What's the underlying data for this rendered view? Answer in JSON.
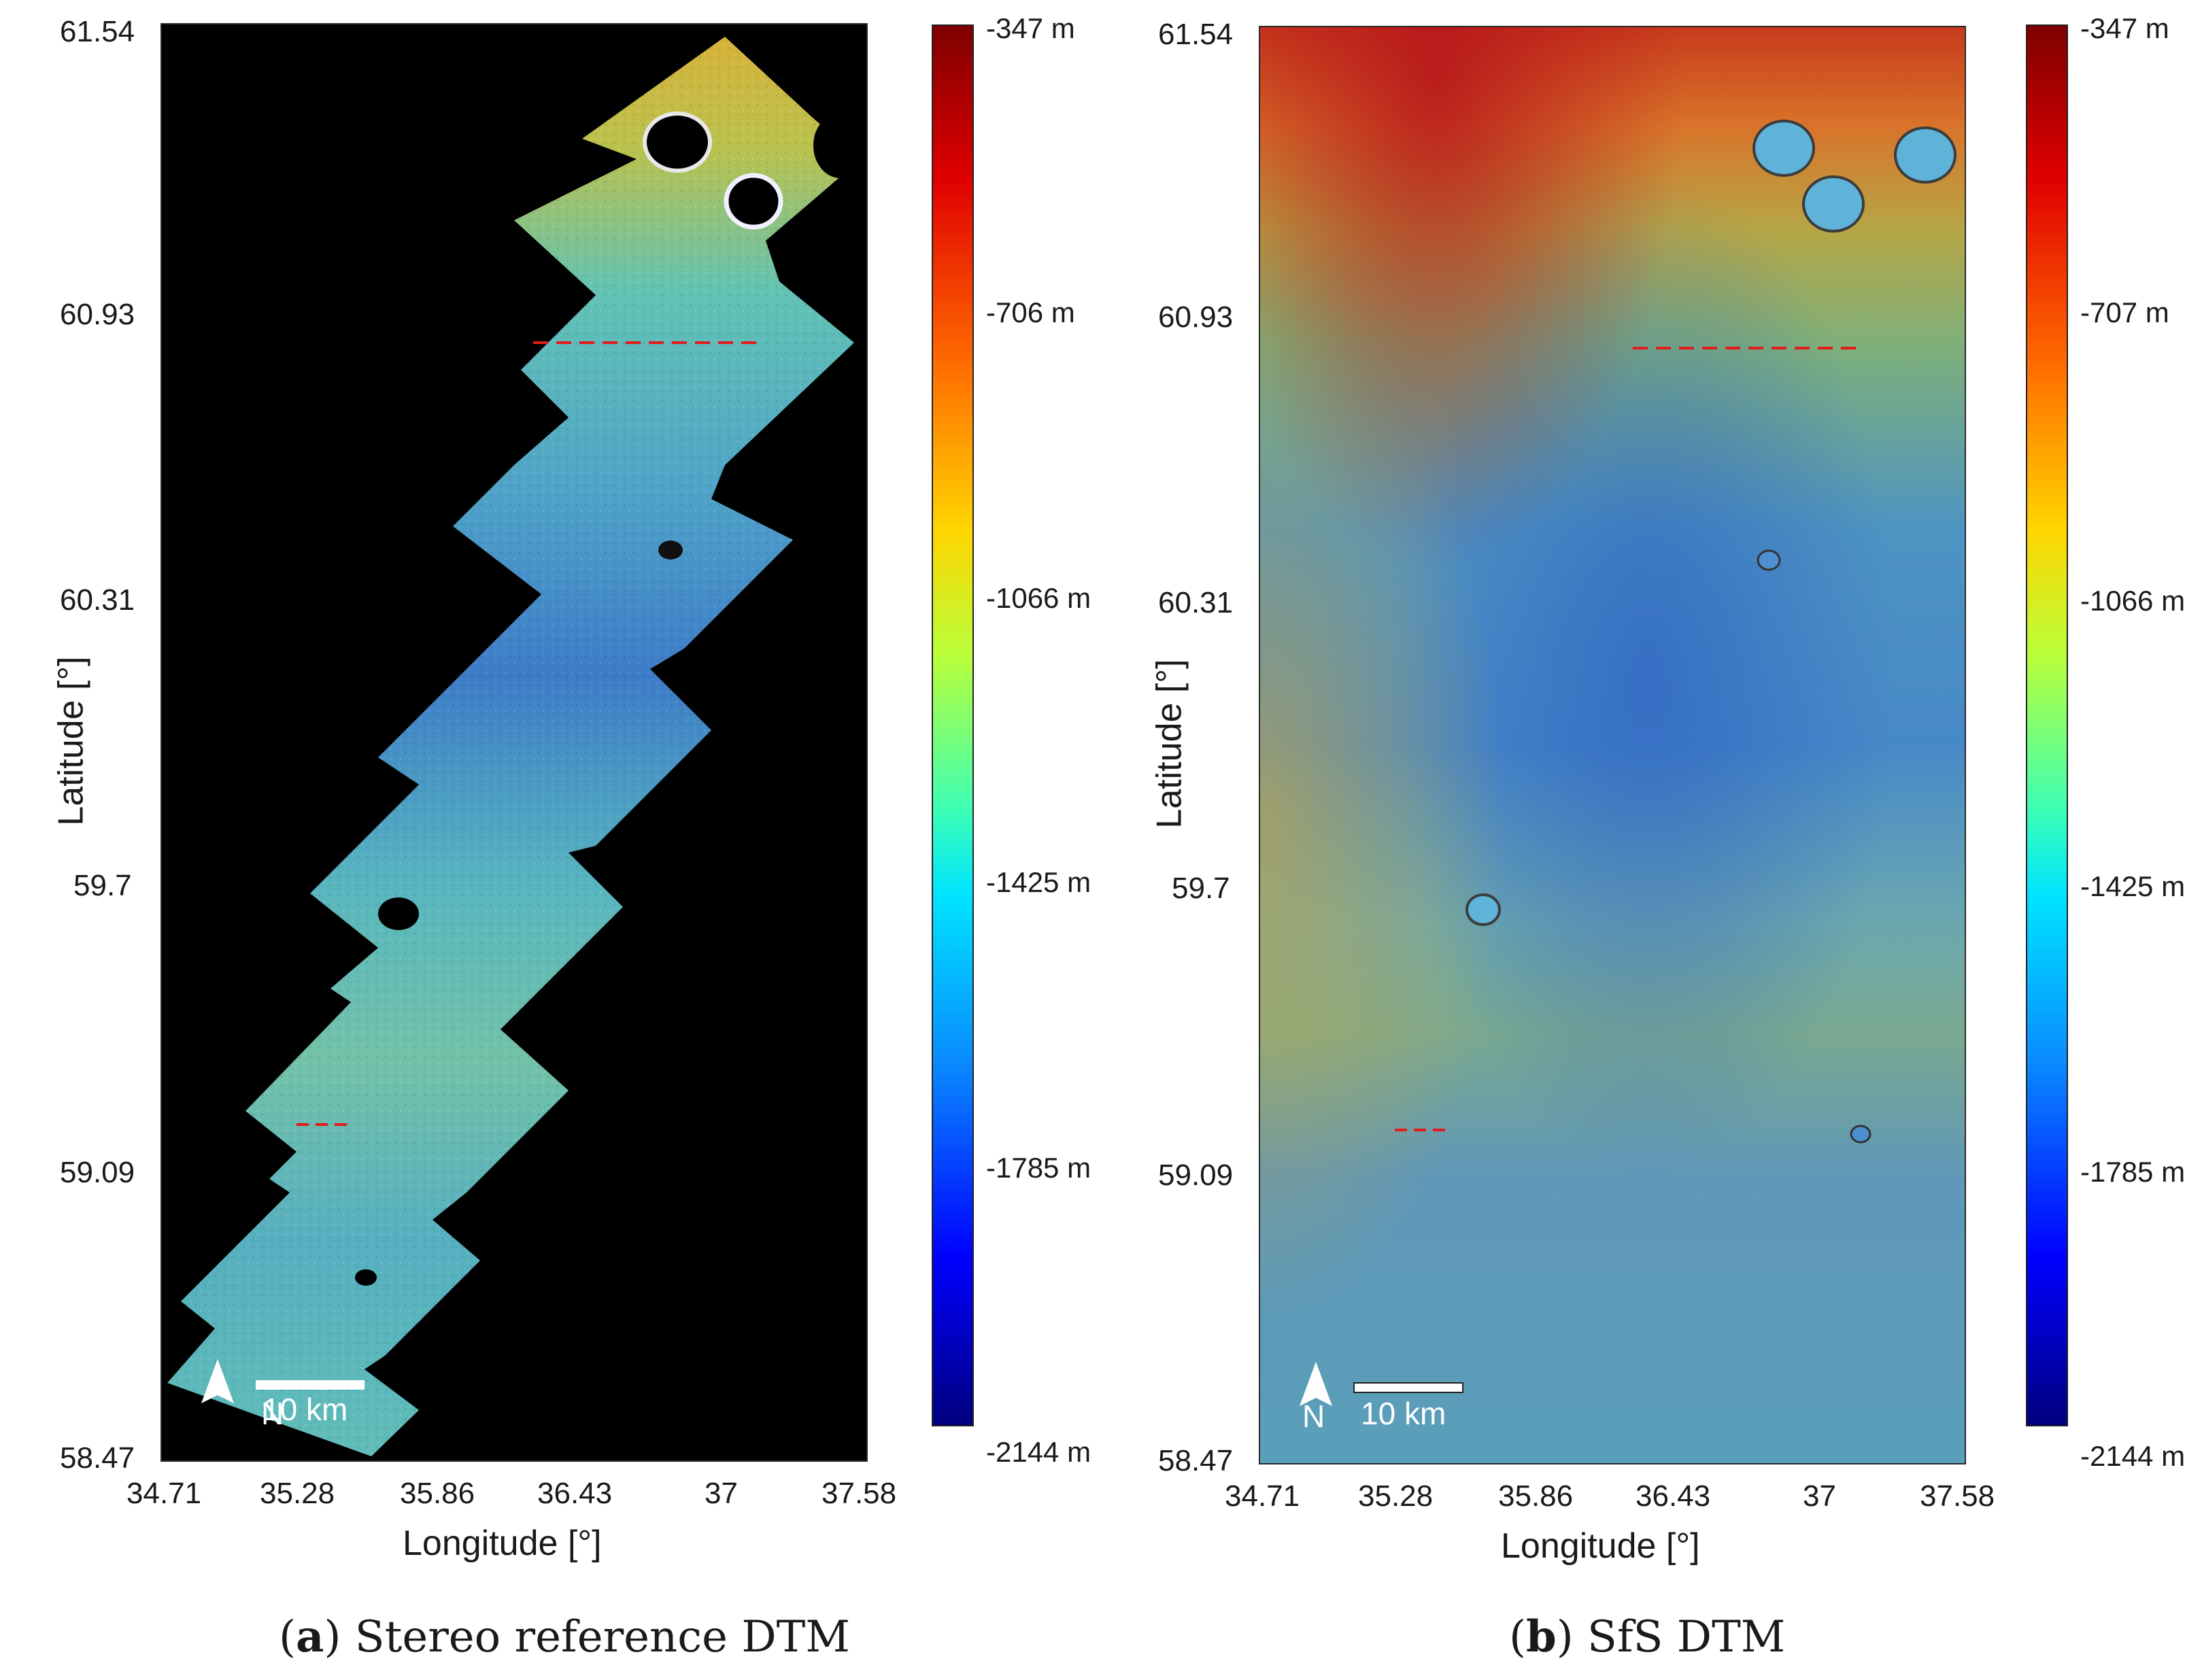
{
  "panels": [
    {
      "id": "a",
      "caption_letter": "a",
      "caption_text": "Stereo reference DTM",
      "y_axis_title": "Latitude [°]",
      "x_axis_title": "Longitude [°]",
      "y_ticks": [
        "61.54",
        "60.93",
        "60.31",
        "59.7",
        "59.09",
        "58.47"
      ],
      "x_ticks": [
        "34.71",
        "35.28",
        "35.86",
        "36.43",
        "37",
        "37.58"
      ],
      "colorbar_labels": [
        "-347 m",
        "-706 m",
        "-1066 m",
        "-1425 m",
        "-1785 m",
        "-2144 m"
      ],
      "scale_bar": "10 km",
      "north": "N"
    },
    {
      "id": "b",
      "caption_letter": "b",
      "caption_text": "SfS DTM",
      "y_axis_title": "Latitude [°]",
      "x_axis_title": "Longitude [°]",
      "y_ticks": [
        "61.54",
        "60.93",
        "60.31",
        "59.7",
        "59.09",
        "58.47"
      ],
      "x_ticks": [
        "34.71",
        "35.28",
        "35.86",
        "36.43",
        "37",
        "37.58"
      ],
      "colorbar_labels": [
        "-347 m",
        "-707 m",
        "-1066 m",
        "-1425 m",
        "-1785 m",
        "-2144 m"
      ],
      "scale_bar": "10 km",
      "north": "N"
    }
  ],
  "colors": {
    "background_map": "#000000",
    "profile_line": "#e21b1b",
    "colorbar_top": "#7f0000",
    "colorbar_bottom": "#00007f"
  }
}
